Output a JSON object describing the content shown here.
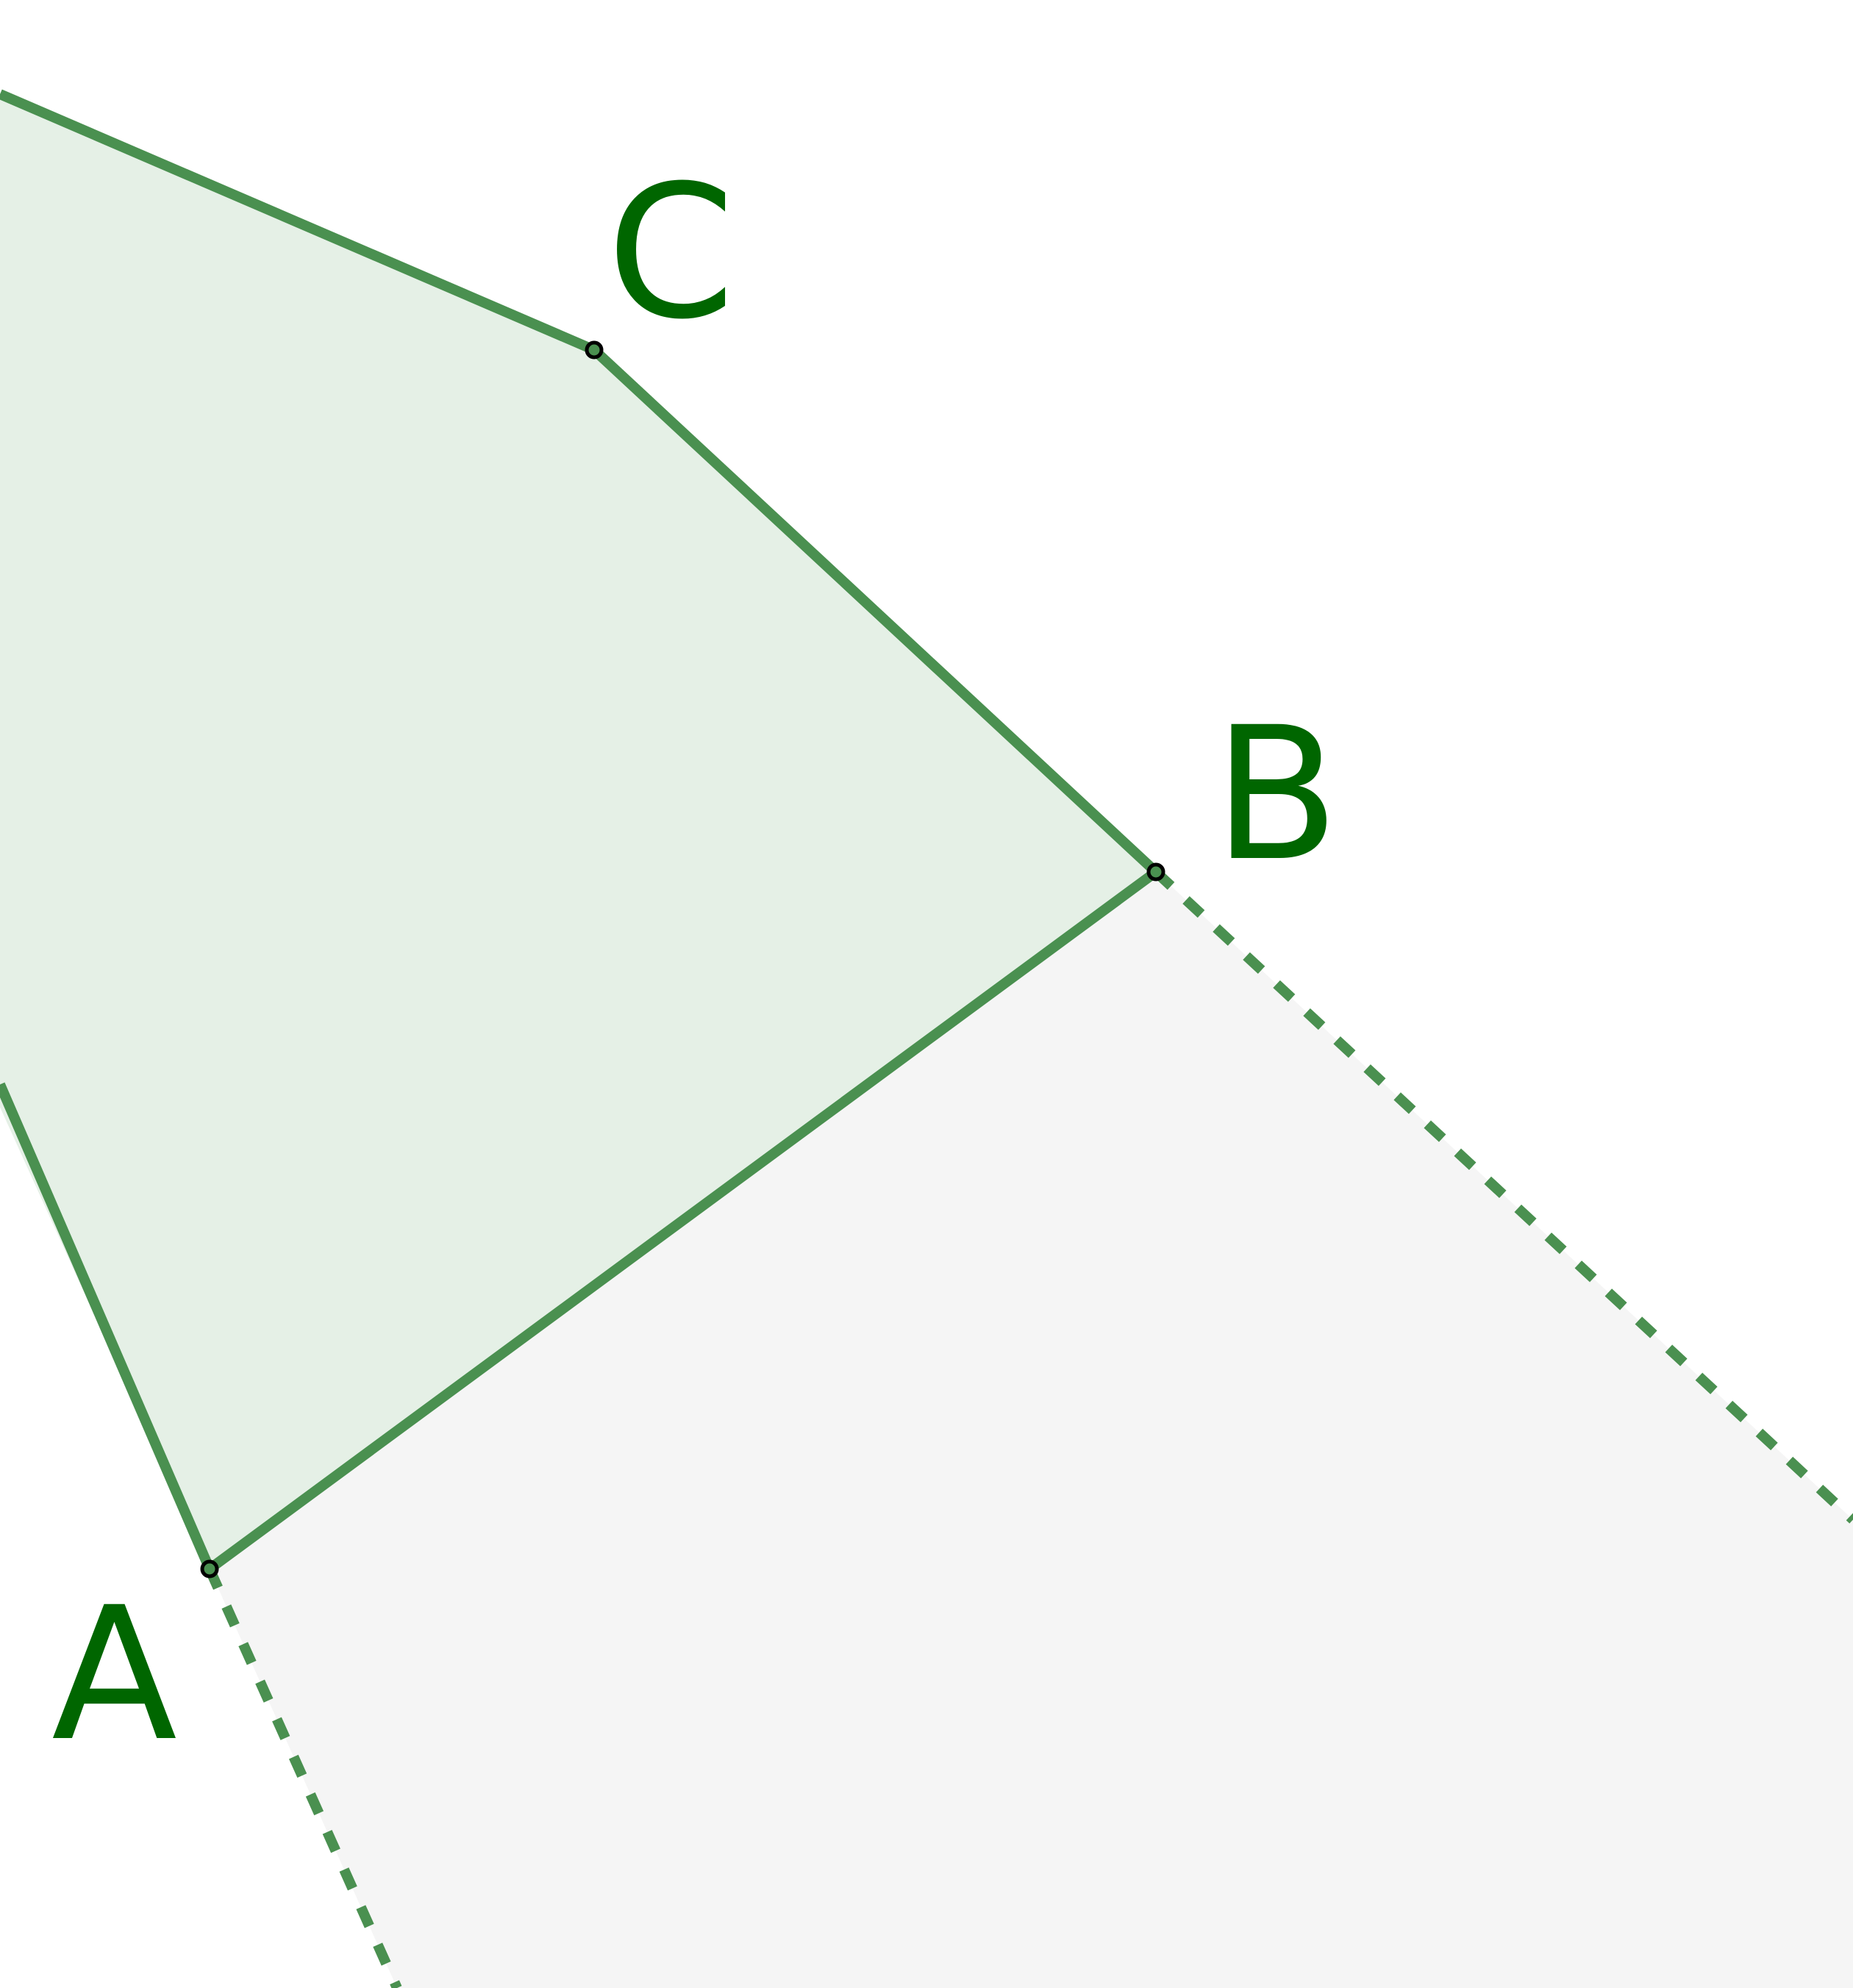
{
  "points": [
    {
      "id": "A",
      "label": "A"
    },
    {
      "id": "B",
      "label": "B"
    },
    {
      "id": "C",
      "label": "C"
    }
  ],
  "colors": {
    "background": "#ffffff",
    "polygon_fill": "#e5f0e6",
    "outside_region_fill": "#f5f5f5",
    "edge_stroke": "#4a9050",
    "label_color": "#006600",
    "point_outline": "#000000"
  }
}
